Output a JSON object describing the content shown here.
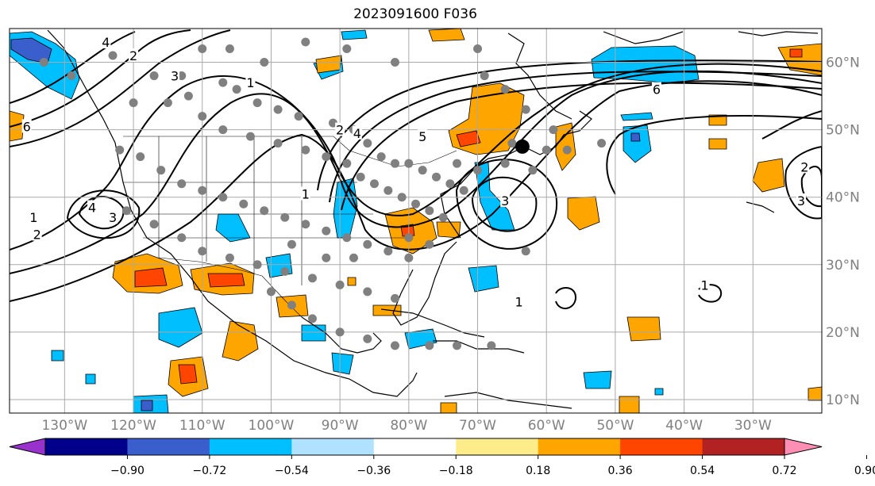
{
  "title": "2023091600 F036",
  "map": {
    "lon_range": [
      -138,
      -20
    ],
    "lat_range": [
      8,
      65
    ],
    "lon_ticks": [
      {
        "lon": -130,
        "label": "130°W"
      },
      {
        "lon": -120,
        "label": "120°W"
      },
      {
        "lon": -110,
        "label": "110°W"
      },
      {
        "lon": -100,
        "label": "100°W"
      },
      {
        "lon": -90,
        "label": "90°W"
      },
      {
        "lon": -80,
        "label": "80°W"
      },
      {
        "lon": -70,
        "label": "70°W"
      },
      {
        "lon": -60,
        "label": "60°W"
      },
      {
        "lon": -50,
        "label": "50°W"
      },
      {
        "lon": -40,
        "label": "40°W"
      },
      {
        "lon": -30,
        "label": "30°W"
      }
    ],
    "lat_ticks": [
      {
        "lat": 60,
        "label": "60°N"
      },
      {
        "lat": 50,
        "label": "50°N"
      },
      {
        "lat": 40,
        "label": "40°N"
      },
      {
        "lat": 30,
        "label": "30°N"
      },
      {
        "lat": 20,
        "label": "20°N"
      },
      {
        "lat": 10,
        "label": "10°N"
      }
    ],
    "gridlines": true,
    "storm_center": {
      "lon": -63.5,
      "lat": 47.5
    },
    "contour_labels": [
      {
        "text": "6",
        "lon": -135.5,
        "lat": 50.5
      },
      {
        "text": "2",
        "lon": -120.0,
        "lat": 61.0
      },
      {
        "text": "3",
        "lon": -114.0,
        "lat": 58.0
      },
      {
        "text": "4",
        "lon": -124.0,
        "lat": 63.0
      },
      {
        "text": "1",
        "lon": -103.0,
        "lat": 57.0
      },
      {
        "text": "2",
        "lon": -90.0,
        "lat": 50.0
      },
      {
        "text": "4",
        "lon": -87.5,
        "lat": 49.5
      },
      {
        "text": "5",
        "lon": -78.0,
        "lat": 49.0
      },
      {
        "text": "1",
        "lon": -95.0,
        "lat": 40.5
      },
      {
        "text": "4",
        "lon": -126.0,
        "lat": 38.5
      },
      {
        "text": "3",
        "lon": -123.0,
        "lat": 37.0
      },
      {
        "text": "1",
        "lon": -134.5,
        "lat": 37.0
      },
      {
        "text": "2",
        "lon": -134.0,
        "lat": 34.5
      },
      {
        "text": "3",
        "lon": -66.0,
        "lat": 39.5
      },
      {
        "text": "1",
        "lon": -64.0,
        "lat": 24.5
      },
      {
        "text": "1",
        "lon": -37.0,
        "lat": 27.0
      },
      {
        "text": "6",
        "lon": -44.0,
        "lat": 56.0
      },
      {
        "text": "2",
        "lon": -22.5,
        "lat": 44.5
      },
      {
        "text": "3",
        "lon": -23.0,
        "lat": 39.5
      }
    ],
    "observation_points": [
      [
        -123,
        61
      ],
      [
        -117,
        58
      ],
      [
        -113,
        58
      ],
      [
        -112,
        55
      ],
      [
        -107,
        57
      ],
      [
        -105,
        56
      ],
      [
        -102,
        54
      ],
      [
        -99,
        53
      ],
      [
        -96,
        52
      ],
      [
        -91,
        51
      ],
      [
        -88,
        50
      ],
      [
        -86,
        48
      ],
      [
        -84,
        46
      ],
      [
        -82,
        45
      ],
      [
        -80,
        45
      ],
      [
        -78,
        44
      ],
      [
        -76,
        43
      ],
      [
        -74,
        42
      ],
      [
        -72,
        41
      ],
      [
        -120,
        54
      ],
      [
        -115,
        54
      ],
      [
        -110,
        52
      ],
      [
        -107,
        50
      ],
      [
        -103,
        49
      ],
      [
        -99,
        48
      ],
      [
        -95,
        47
      ],
      [
        -92,
        46
      ],
      [
        -89,
        45
      ],
      [
        -87,
        43
      ],
      [
        -85,
        42
      ],
      [
        -83,
        41
      ],
      [
        -81,
        40
      ],
      [
        -79,
        39
      ],
      [
        -77,
        38
      ],
      [
        -75,
        37
      ],
      [
        -122,
        47
      ],
      [
        -119,
        46
      ],
      [
        -116,
        44
      ],
      [
        -113,
        42
      ],
      [
        -110,
        41
      ],
      [
        -107,
        40
      ],
      [
        -104,
        39
      ],
      [
        -101,
        38
      ],
      [
        -98,
        37
      ],
      [
        -95,
        36
      ],
      [
        -92,
        35
      ],
      [
        -89,
        34
      ],
      [
        -86,
        33
      ],
      [
        -83,
        32
      ],
      [
        -80,
        31
      ],
      [
        -121,
        38
      ],
      [
        -117,
        36
      ],
      [
        -113,
        34
      ],
      [
        -110,
        32
      ],
      [
        -106,
        31
      ],
      [
        -102,
        30
      ],
      [
        -98,
        29
      ],
      [
        -94,
        28
      ],
      [
        -90,
        27
      ],
      [
        -86,
        26
      ],
      [
        -82,
        25
      ],
      [
        -100,
        26
      ],
      [
        -97,
        24
      ],
      [
        -94,
        22
      ],
      [
        -90,
        20
      ],
      [
        -86,
        19
      ],
      [
        -82,
        18
      ],
      [
        -77,
        18
      ],
      [
        -73,
        18
      ],
      [
        -68,
        18
      ],
      [
        -65,
        48
      ],
      [
        -60,
        47
      ],
      [
        -57,
        47
      ],
      [
        -62,
        44
      ],
      [
        -66,
        45
      ],
      [
        -70,
        44
      ],
      [
        -73,
        45
      ],
      [
        -59,
        50
      ],
      [
        -63,
        53
      ],
      [
        -66,
        56
      ],
      [
        -69,
        58
      ],
      [
        -70,
        62
      ],
      [
        -82,
        60
      ],
      [
        -89,
        62
      ],
      [
        -95,
        63
      ],
      [
        -101,
        60
      ],
      [
        -106,
        62
      ],
      [
        -110,
        62
      ],
      [
        -129,
        58
      ],
      [
        -133,
        60
      ],
      [
        -63,
        32
      ],
      [
        -52,
        48
      ],
      [
        -77,
        33
      ],
      [
        -80,
        34
      ],
      [
        -88,
        31
      ],
      [
        -92,
        31
      ],
      [
        -97,
        33
      ]
    ]
  },
  "colorbar": {
    "colors": [
      "#9932cc",
      "#00008b",
      "#3a5fcd",
      "#00bfff",
      "#b0e2ff",
      "#ffffff",
      "#fdec8a",
      "#ffa500",
      "#ff4500",
      "#b22222",
      "#ff8eb4"
    ],
    "tick_labels": [
      "−0.90",
      "−0.72",
      "−0.54",
      "−0.36",
      "−0.18",
      "0.18",
      "0.36",
      "0.54",
      "0.72",
      "0.90"
    ]
  },
  "shading_colors": {
    "positive_low": "#ffa500",
    "positive_high": "#ff4500",
    "negative_low": "#00bfff",
    "negative_mid": "#3a5fcd"
  }
}
